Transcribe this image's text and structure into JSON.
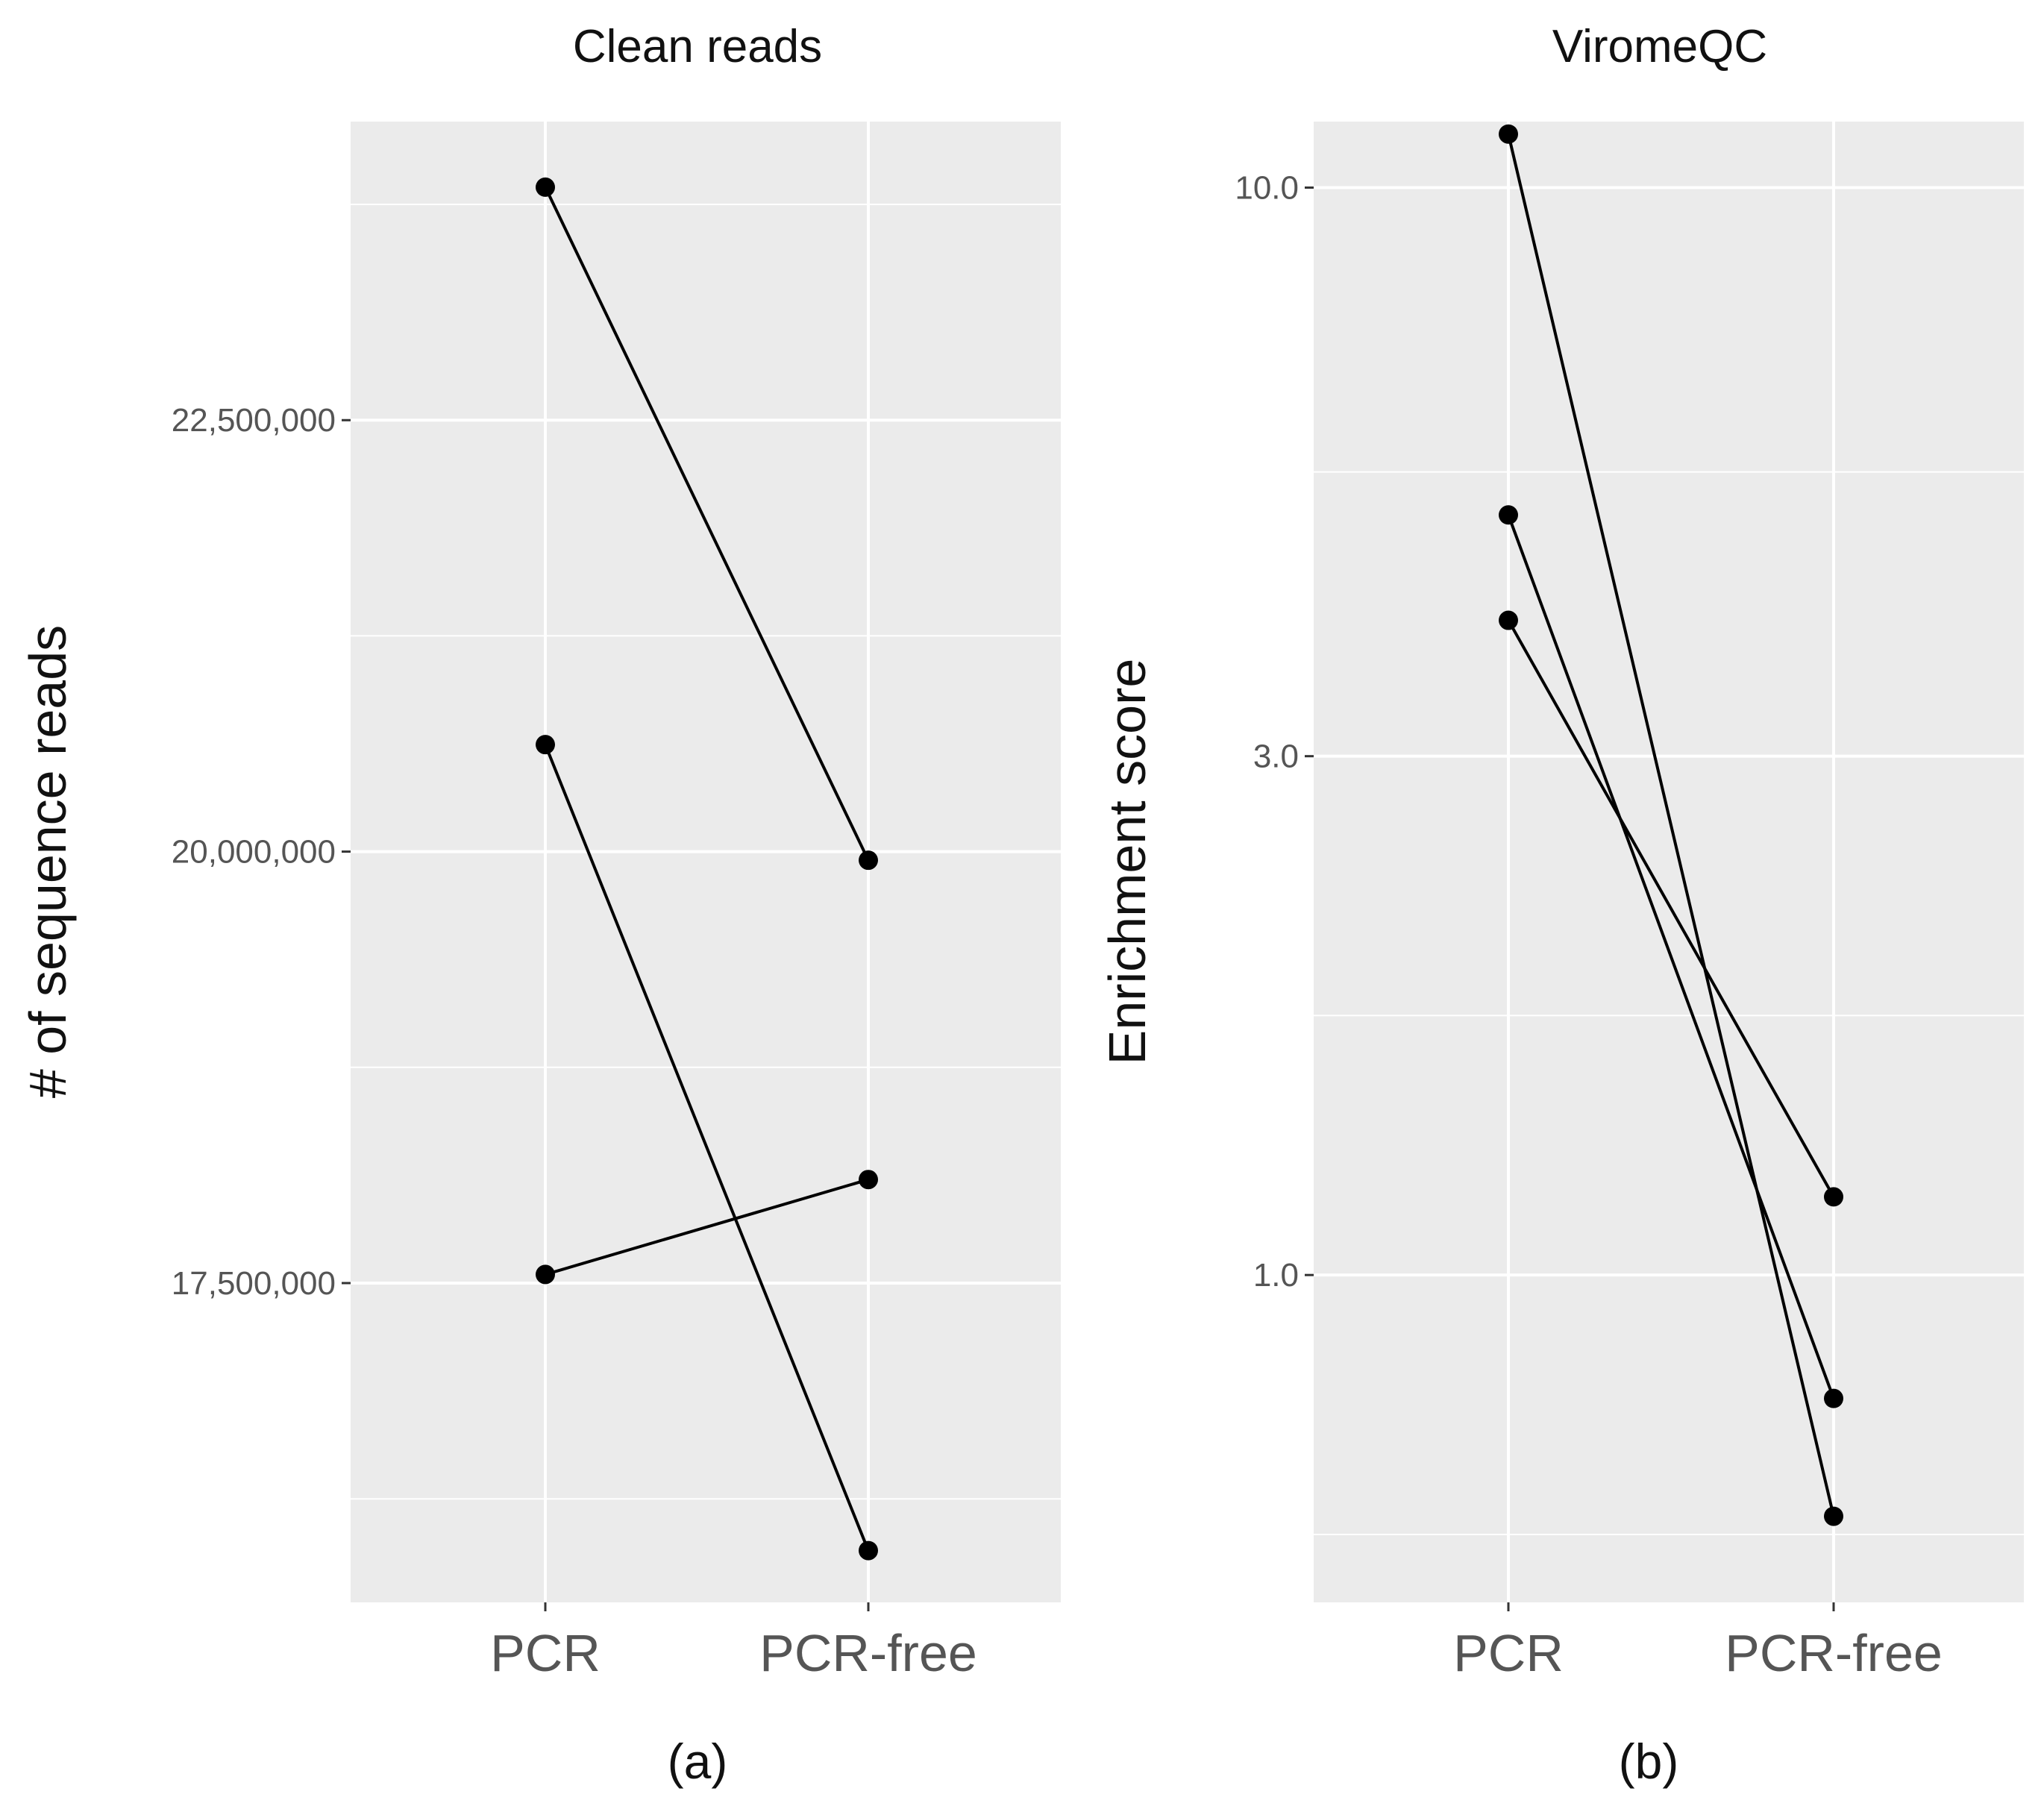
{
  "chart_data": [
    {
      "type": "line",
      "panel": "(a)",
      "title": "Clean reads",
      "xlabel": "",
      "ylabel": "# of sequence reads",
      "categories": [
        "PCR",
        "PCR-free"
      ],
      "yticks": [
        17500000,
        20000000,
        22500000
      ],
      "ytick_labels": [
        "17,500,000",
        "20,000,000",
        "22,500,000"
      ],
      "ylim": [
        15650000,
        24230000
      ],
      "log_scale": false,
      "grid": true,
      "series": [
        {
          "values": [
            23850000,
            19950000
          ]
        },
        {
          "values": [
            20620000,
            15950000
          ]
        },
        {
          "values": [
            17550000,
            18100000
          ]
        }
      ]
    },
    {
      "type": "line",
      "panel": "(b)",
      "title": "ViromeQC",
      "xlabel": "",
      "ylabel": "Enrichment score",
      "categories": [
        "PCR",
        "PCR-free"
      ],
      "yticks": [
        1.0,
        3.0,
        10.0
      ],
      "ytick_labels": [
        "1.0",
        "3.0",
        "10.0"
      ],
      "ylim": [
        0.5,
        11.5
      ],
      "log_scale": true,
      "grid": true,
      "series": [
        {
          "values": [
            11.2,
            0.6
          ]
        },
        {
          "values": [
            5.0,
            0.77
          ]
        },
        {
          "values": [
            4.0,
            1.18
          ]
        }
      ]
    }
  ]
}
